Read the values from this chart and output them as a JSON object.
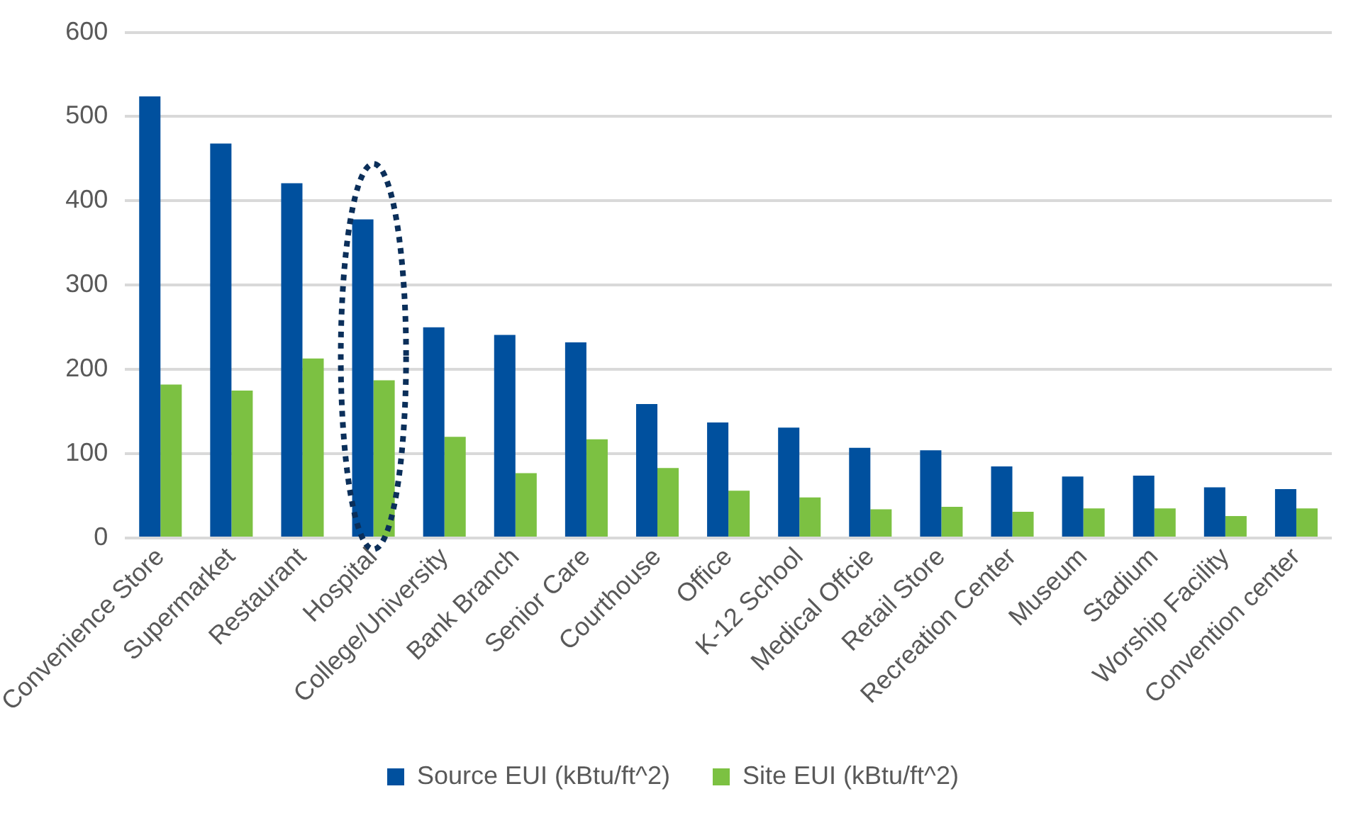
{
  "chart_data": {
    "type": "bar",
    "categories": [
      "Convenience Store",
      "Supermarket",
      "Restaurant",
      "Hospital",
      "College/University",
      "Bank Branch",
      "Senior Care",
      "Courthouse",
      "Office",
      "K-12 School",
      "Medical Offcie",
      "Retail Store",
      "Recreation Center",
      "Museum",
      "Stadium",
      "Worship Facility",
      "Convention center"
    ],
    "series": [
      {
        "name": "Source EUI (kBtu/ft^2)",
        "color": "#00509e",
        "values": [
          524,
          468,
          421,
          378,
          250,
          241,
          232,
          159,
          137,
          131,
          107,
          104,
          85,
          73,
          74,
          60,
          58
        ]
      },
      {
        "name": "Site EUI (kBtu/ft^2)",
        "color": "#7cc142",
        "values": [
          182,
          175,
          213,
          187,
          120,
          77,
          117,
          83,
          56,
          48,
          34,
          37,
          31,
          35,
          35,
          26,
          35
        ]
      }
    ],
    "ylim": [
      0,
      600
    ],
    "yticks": [
      0,
      100,
      200,
      300,
      400,
      500,
      600
    ],
    "grid": "y",
    "legend": "bottom"
  }
}
